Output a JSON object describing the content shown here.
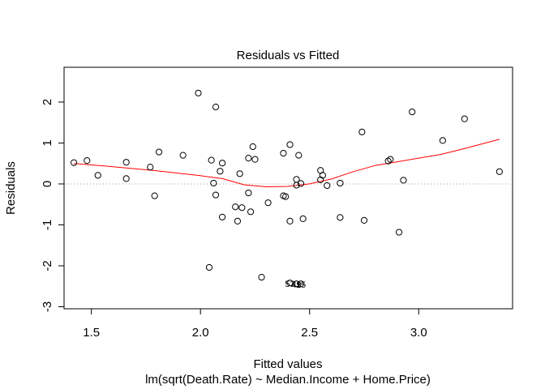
{
  "chart_data": {
    "type": "scatter",
    "title": "Residuals vs Fitted",
    "xlabel": "Fitted values",
    "sublabel": "lm(sqrt(Death.Rate) ~ Median.Income + Home.Price)",
    "ylabel": "Residuals",
    "xlim": [
      1.375,
      3.43
    ],
    "ylim": [
      -3.05,
      2.85
    ],
    "xticks": [
      1.5,
      2.0,
      2.5,
      3.0
    ],
    "xtick_labels": [
      "1.5",
      "2.0",
      "2.5",
      "3.0"
    ],
    "yticks": [
      -3,
      -2,
      -1,
      0,
      1,
      2
    ],
    "ytick_labels": [
      "-3",
      "-2",
      "-1",
      "0",
      "1",
      "2"
    ],
    "colors": {
      "smoother": "#ff0000",
      "zero_line": "#999999",
      "points": "#000000"
    },
    "points": [
      {
        "x": 1.42,
        "y": 0.52
      },
      {
        "x": 1.48,
        "y": 0.57
      },
      {
        "x": 1.53,
        "y": 0.21
      },
      {
        "x": 1.66,
        "y": 0.53
      },
      {
        "x": 1.66,
        "y": 0.13
      },
      {
        "x": 1.77,
        "y": 0.41
      },
      {
        "x": 1.79,
        "y": -0.29
      },
      {
        "x": 1.81,
        "y": 0.78
      },
      {
        "x": 1.92,
        "y": 0.7
      },
      {
        "x": 1.99,
        "y": 2.22
      },
      {
        "x": 2.04,
        "y": -2.04
      },
      {
        "x": 2.05,
        "y": 0.58
      },
      {
        "x": 2.06,
        "y": 0.02
      },
      {
        "x": 2.07,
        "y": 1.88
      },
      {
        "x": 2.07,
        "y": -0.27
      },
      {
        "x": 2.09,
        "y": 0.31
      },
      {
        "x": 2.1,
        "y": 0.51
      },
      {
        "x": 2.1,
        "y": -0.81
      },
      {
        "x": 2.16,
        "y": -0.56
      },
      {
        "x": 2.17,
        "y": -0.91
      },
      {
        "x": 2.18,
        "y": 0.25
      },
      {
        "x": 2.19,
        "y": -0.58
      },
      {
        "x": 2.22,
        "y": 0.63
      },
      {
        "x": 2.22,
        "y": -0.22
      },
      {
        "x": 2.23,
        "y": -0.68
      },
      {
        "x": 2.24,
        "y": 0.91
      },
      {
        "x": 2.25,
        "y": 0.6
      },
      {
        "x": 2.28,
        "y": -2.28
      },
      {
        "x": 2.31,
        "y": -0.46
      },
      {
        "x": 2.38,
        "y": 0.75
      },
      {
        "x": 2.38,
        "y": -0.29
      },
      {
        "x": 2.39,
        "y": -0.31
      },
      {
        "x": 2.41,
        "y": 0.96
      },
      {
        "x": 2.41,
        "y": -0.91
      },
      {
        "x": 2.44,
        "y": 0.11
      },
      {
        "x": 2.44,
        "y": -0.03
      },
      {
        "x": 2.45,
        "y": 0.7
      },
      {
        "x": 2.46,
        "y": 0.01
      },
      {
        "x": 2.47,
        "y": -0.85
      },
      {
        "x": 2.55,
        "y": 0.33
      },
      {
        "x": 2.55,
        "y": 0.1
      },
      {
        "x": 2.56,
        "y": 0.21
      },
      {
        "x": 2.58,
        "y": -0.04
      },
      {
        "x": 2.64,
        "y": 0.02
      },
      {
        "x": 2.64,
        "y": -0.82
      },
      {
        "x": 2.74,
        "y": 1.27
      },
      {
        "x": 2.75,
        "y": -0.89
      },
      {
        "x": 2.86,
        "y": 0.56
      },
      {
        "x": 2.87,
        "y": 0.6
      },
      {
        "x": 2.91,
        "y": -1.18
      },
      {
        "x": 2.93,
        "y": 0.09
      },
      {
        "x": 2.97,
        "y": 1.76
      },
      {
        "x": 3.11,
        "y": 1.06
      },
      {
        "x": 3.21,
        "y": 1.59
      },
      {
        "x": 3.37,
        "y": 0.3
      }
    ],
    "labeled_points": [
      {
        "x": 2.41,
        "y": -2.42,
        "label": "53"
      },
      {
        "x": 2.44,
        "y": -2.44,
        "label": "49"
      },
      {
        "x": 2.46,
        "y": -2.44,
        "label": "15"
      }
    ],
    "smoother": [
      {
        "x": 1.42,
        "y": 0.5
      },
      {
        "x": 1.6,
        "y": 0.42
      },
      {
        "x": 1.8,
        "y": 0.32
      },
      {
        "x": 2.0,
        "y": 0.2
      },
      {
        "x": 2.1,
        "y": 0.13
      },
      {
        "x": 2.2,
        "y": -0.02
      },
      {
        "x": 2.3,
        "y": -0.07
      },
      {
        "x": 2.4,
        "y": -0.06
      },
      {
        "x": 2.5,
        "y": 0.0
      },
      {
        "x": 2.6,
        "y": 0.12
      },
      {
        "x": 2.7,
        "y": 0.3
      },
      {
        "x": 2.8,
        "y": 0.45
      },
      {
        "x": 2.9,
        "y": 0.54
      },
      {
        "x": 3.0,
        "y": 0.63
      },
      {
        "x": 3.1,
        "y": 0.72
      },
      {
        "x": 3.2,
        "y": 0.85
      },
      {
        "x": 3.37,
        "y": 1.09
      }
    ]
  }
}
